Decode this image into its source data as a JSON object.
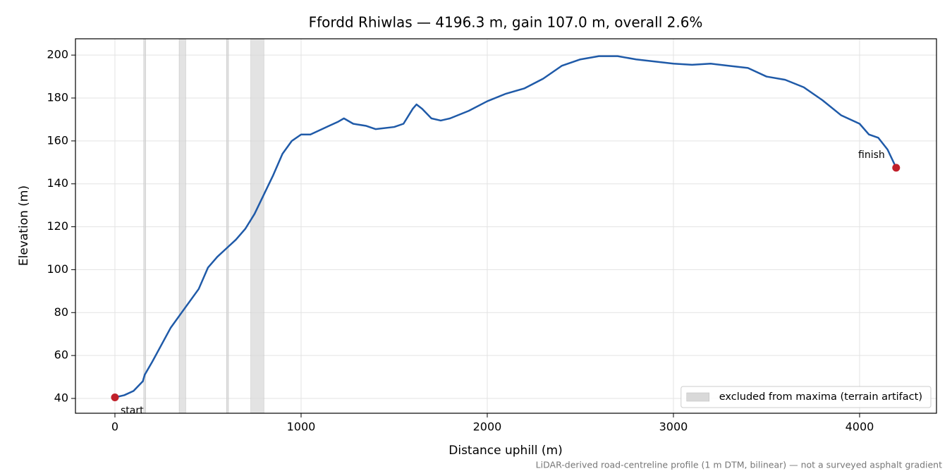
{
  "chart_data": {
    "type": "line",
    "title": "Ffordd Rhiwlas — 4196.3 m, gain 107.0 m, overall 2.6%",
    "xlabel": "Distance uphill (m)",
    "ylabel": "Elevation (m)",
    "footnote": "LiDAR-derived road-centreline profile (1 m DTM, bilinear) — not a surveyed asphalt gradient",
    "xlim": [
      -212,
      4413
    ],
    "ylim": [
      33.1,
      207.6
    ],
    "xticks": [
      0,
      1000,
      2000,
      3000,
      4000
    ],
    "yticks": [
      40,
      60,
      80,
      100,
      120,
      140,
      160,
      180,
      200
    ],
    "grid": true,
    "legend": "lower right",
    "bands": {
      "name": "excluded from maxima (terrain artifact)",
      "color": "#d9d9d9",
      "ranges": [
        [
          155,
          165
        ],
        [
          345,
          380
        ],
        [
          600,
          610
        ],
        [
          730,
          800
        ]
      ]
    },
    "annotations": [
      "start",
      "finish"
    ],
    "marker_color": "#c0202a",
    "series": [
      {
        "color": "#1f5aa8",
        "x": [
          0,
          50,
          100,
          150,
          160,
          200,
          250,
          300,
          350,
          400,
          450,
          500,
          550,
          600,
          650,
          700,
          750,
          800,
          850,
          900,
          950,
          1000,
          1050,
          1100,
          1150,
          1200,
          1230,
          1280,
          1350,
          1400,
          1500,
          1550,
          1600,
          1620,
          1650,
          1700,
          1750,
          1800,
          1900,
          2000,
          2100,
          2200,
          2300,
          2400,
          2500,
          2600,
          2700,
          2800,
          2900,
          3000,
          3100,
          3200,
          3300,
          3400,
          3500,
          3600,
          3700,
          3800,
          3900,
          4000,
          4050,
          4100,
          4150,
          4196.3
        ],
        "values": [
          40.5,
          41.5,
          43.5,
          48,
          51,
          57,
          65,
          73,
          79,
          85,
          91,
          101,
          106,
          110,
          114,
          119,
          126,
          135,
          144,
          154,
          160,
          163,
          163,
          165,
          167,
          169,
          170.5,
          168,
          167,
          165.5,
          166.5,
          168,
          175,
          177,
          175,
          170.5,
          169.5,
          170.5,
          174,
          178.5,
          182,
          184.5,
          189,
          195,
          198,
          199.5,
          199.5,
          198,
          197,
          196,
          195.5,
          196,
          195,
          194,
          190,
          188.5,
          185,
          179,
          172,
          168,
          163,
          161.5,
          156,
          147.5
        ]
      }
    ]
  }
}
